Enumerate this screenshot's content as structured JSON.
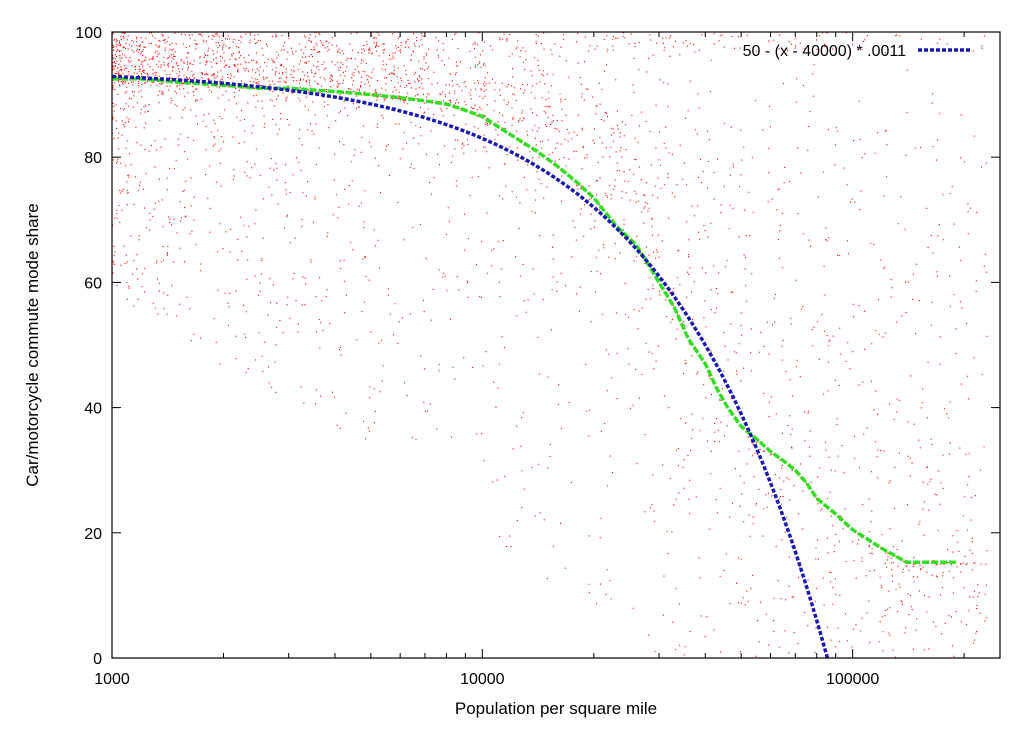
{
  "chart_data": {
    "type": "scatter",
    "xlabel": "Population per square mile",
    "ylabel": "Car/motorcycle commute mode share",
    "xscale": "log",
    "xlim": [
      1000,
      250000
    ],
    "ylim": [
      0,
      100
    ],
    "x_ticks": [
      {
        "value": 1000,
        "label": "1000"
      },
      {
        "value": 10000,
        "label": "10000"
      },
      {
        "value": 100000,
        "label": "100000"
      }
    ],
    "y_ticks": [
      {
        "value": 0,
        "label": "0"
      },
      {
        "value": 20,
        "label": "20"
      },
      {
        "value": 40,
        "label": "40"
      },
      {
        "value": 60,
        "label": "60"
      },
      {
        "value": 80,
        "label": "80"
      },
      {
        "value": 100,
        "label": "100"
      }
    ],
    "grid": false,
    "legend_position": "top-right",
    "colors": {
      "scatter": "#ff0000",
      "median_line": "#33dd22",
      "fit_line": "#1a1ab0"
    },
    "series": [
      {
        "kind": "scatter-cloud",
        "description_points": "dense red dots, heaviest near 90-100 at low densities, spreading downward as density grows"
      },
      {
        "kind": "median-line",
        "x": [
          1000,
          1200,
          1500,
          2000,
          2500,
          3000,
          4000,
          5000,
          6000,
          7000,
          8000,
          9000,
          10000,
          12000,
          14000,
          16000,
          18000,
          20000,
          23000,
          26000,
          28000,
          30000,
          33000,
          36000,
          40000,
          43000,
          46000,
          50000,
          55000,
          60000,
          65000,
          70000,
          75000,
          80000,
          90000,
          100000,
          120000,
          140000,
          190000
        ],
        "y": [
          92.5,
          92.5,
          92,
          91.5,
          91,
          91,
          90.5,
          90,
          89.5,
          89,
          88.5,
          87.5,
          86.5,
          83.5,
          81,
          78.5,
          76,
          73.5,
          69,
          66,
          63,
          60,
          56,
          51,
          47,
          43,
          40,
          37,
          35,
          33,
          31.5,
          30,
          28,
          25.5,
          23,
          20.5,
          17.5,
          15.3,
          15.3
        ]
      },
      {
        "name": "50 - (x - 40000) * .0011",
        "kind": "fit-line",
        "x_from": 1000,
        "x_to": 85454
      }
    ]
  }
}
